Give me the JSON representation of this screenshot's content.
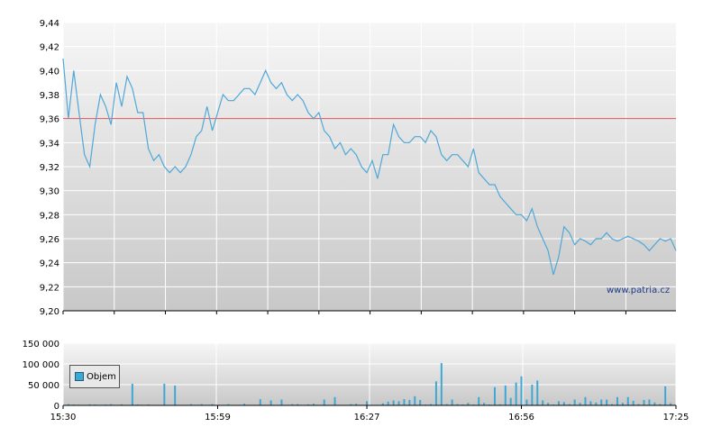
{
  "watermark": "www.patria.cz",
  "colors": {
    "price_line": "#4fa8d8",
    "reference_line": "#e0504a",
    "volume_bar": "#3fa7d4",
    "plot_bg_top": "#f6f6f6",
    "plot_bg_bottom": "#c8c8c8",
    "grid": "#ffffff"
  },
  "chart_data": [
    {
      "type": "line",
      "ylim": [
        9.2,
        9.44
      ],
      "y_ticks": [
        "9,44",
        "9,42",
        "9,40",
        "9,38",
        "9,36",
        "9,34",
        "9,32",
        "9,30",
        "9,28",
        "9,26",
        "9,24",
        "9,22",
        "9,20"
      ],
      "y_tick_values": [
        9.44,
        9.42,
        9.4,
        9.38,
        9.36,
        9.34,
        9.32,
        9.3,
        9.28,
        9.26,
        9.24,
        9.22,
        9.2
      ],
      "reference_line": 9.36,
      "x_range_minutes": [
        0,
        115
      ],
      "grid": true,
      "series": [
        {
          "x": [
            0,
            1,
            2,
            3,
            4,
            5,
            6,
            7,
            8,
            9,
            10,
            11,
            12,
            13,
            14,
            15,
            16,
            17,
            18,
            19,
            20,
            21,
            22,
            23,
            24,
            25,
            26,
            27,
            28,
            29,
            30,
            31,
            32,
            33,
            34,
            35,
            36,
            37,
            38,
            39,
            40,
            41,
            42,
            43,
            44,
            45,
            46,
            47,
            48,
            49,
            50,
            51,
            52,
            53,
            54,
            55,
            56,
            57,
            58,
            59,
            60,
            61,
            62,
            63,
            64,
            65,
            66,
            67,
            68,
            69,
            70,
            71,
            72,
            73,
            74,
            75,
            76,
            77,
            78,
            79,
            80,
            81,
            82,
            83,
            84,
            85,
            86,
            87,
            88,
            89,
            90,
            91,
            92,
            93,
            94,
            95,
            96,
            97,
            98,
            99,
            100,
            101,
            102,
            103,
            104,
            105,
            106,
            107,
            108,
            109,
            110,
            111,
            112,
            113,
            114,
            115
          ],
          "values": [
            9.41,
            9.36,
            9.4,
            9.365,
            9.33,
            9.32,
            9.355,
            9.38,
            9.37,
            9.355,
            9.39,
            9.37,
            9.395,
            9.385,
            9.365,
            9.365,
            9.335,
            9.325,
            9.33,
            9.32,
            9.315,
            9.32,
            9.315,
            9.32,
            9.33,
            9.345,
            9.35,
            9.37,
            9.35,
            9.365,
            9.38,
            9.375,
            9.375,
            9.38,
            9.385,
            9.385,
            9.38,
            9.39,
            9.4,
            9.39,
            9.385,
            9.39,
            9.38,
            9.375,
            9.38,
            9.375,
            9.365,
            9.36,
            9.365,
            9.35,
            9.345,
            9.335,
            9.34,
            9.33,
            9.335,
            9.33,
            9.32,
            9.315,
            9.325,
            9.31,
            9.33,
            9.33,
            9.355,
            9.345,
            9.34,
            9.34,
            9.345,
            9.345,
            9.34,
            9.35,
            9.345,
            9.33,
            9.325,
            9.33,
            9.33,
            9.325,
            9.32,
            9.335,
            9.315,
            9.31,
            9.305,
            9.305,
            9.295,
            9.29,
            9.285,
            9.28,
            9.28,
            9.275,
            9.285,
            9.27,
            9.26,
            9.25,
            9.23,
            9.245,
            9.27,
            9.265,
            9.255,
            9.26,
            9.258,
            9.255,
            9.26,
            9.26,
            9.265,
            9.26,
            9.258,
            9.26,
            9.262,
            9.26,
            9.258,
            9.255,
            9.25,
            9.255,
            9.26,
            9.258,
            9.26,
            9.25
          ]
        }
      ]
    },
    {
      "type": "bar",
      "series_name": "Objem",
      "ylim": [
        0,
        150000
      ],
      "y_ticks": [
        "150 000",
        "100 000",
        "50 000",
        "0"
      ],
      "y_tick_values": [
        150000,
        100000,
        50000,
        0
      ],
      "x_ticks": [
        "15:30",
        "15:59",
        "16:27",
        "16:56",
        "17:25"
      ],
      "x_tick_minutes": [
        0,
        29,
        57,
        86,
        115
      ],
      "x_range_minutes": [
        0,
        115
      ],
      "grid": true,
      "legend": "Objem",
      "x": [
        1,
        2,
        3,
        5,
        6,
        8,
        9,
        11,
        13,
        14,
        16,
        19,
        21,
        24,
        26,
        28,
        31,
        34,
        37,
        39,
        41,
        43,
        44,
        46,
        47,
        49,
        51,
        54,
        55,
        57,
        60,
        61,
        62,
        63,
        64,
        65,
        66,
        67,
        68,
        69,
        70,
        71,
        72,
        73,
        74,
        75,
        76,
        77,
        78,
        79,
        80,
        81,
        82,
        83,
        84,
        85,
        86,
        87,
        88,
        89,
        90,
        91,
        92,
        93,
        94,
        95,
        96,
        97,
        98,
        99,
        100,
        101,
        102,
        103,
        104,
        105,
        106,
        107,
        108,
        109,
        110,
        111,
        112,
        113,
        114
      ],
      "values": [
        3000,
        2000,
        1500,
        2500,
        2000,
        2000,
        3000,
        2500,
        52000,
        2000,
        2000,
        52000,
        48000,
        3000,
        3000,
        3000,
        3000,
        4000,
        15000,
        12000,
        14000,
        3000,
        3000,
        2500,
        4000,
        14000,
        20000,
        3000,
        4000,
        10000,
        5000,
        9000,
        12000,
        10000,
        15000,
        13000,
        22000,
        13000,
        2000,
        3000,
        58000,
        102000,
        3000,
        14000,
        3000,
        2000,
        6000,
        2000,
        20000,
        6000,
        2000,
        44000,
        2500,
        48000,
        18000,
        55000,
        70000,
        14000,
        50000,
        60000,
        12000,
        6000,
        2000,
        10000,
        8000,
        3000,
        14000,
        6000,
        20000,
        10000,
        7000,
        14000,
        14000,
        3000,
        20000,
        6000,
        20000,
        11000,
        3000,
        13000,
        14000,
        7000,
        3000,
        46000,
        5000
      ]
    }
  ]
}
